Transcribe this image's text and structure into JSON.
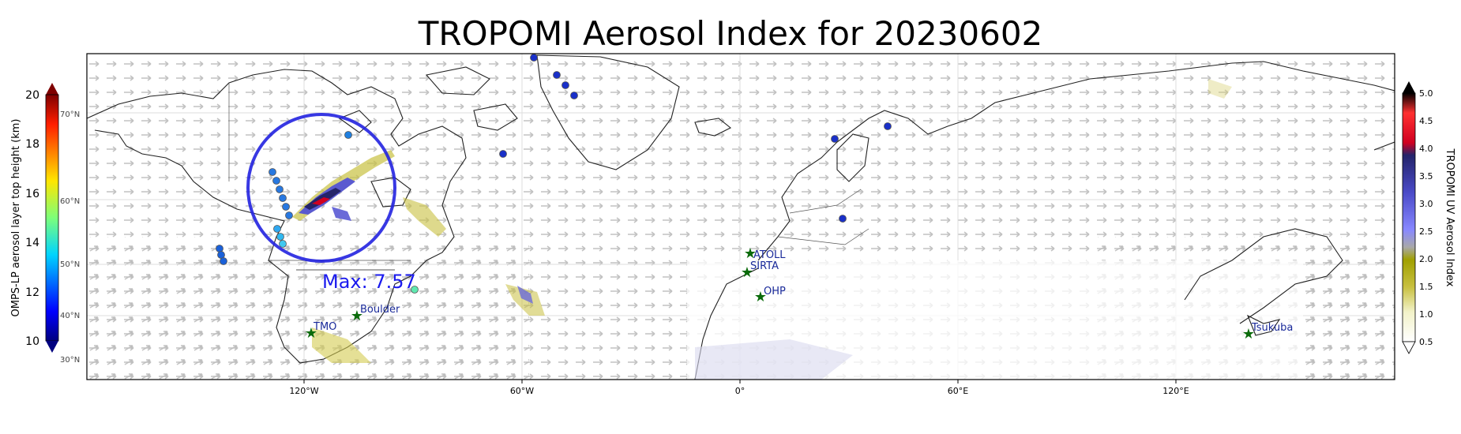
{
  "title": "TROPOMI Aerosol Index for 20230602",
  "map": {
    "lon_ticks": [
      "120°W",
      "60°W",
      "0°",
      "60°E",
      "120°E"
    ],
    "lat_labels": [
      "70°N",
      "60°N",
      "50°N",
      "40°N",
      "30°N"
    ],
    "max_label": "Max: 7.57",
    "stations": [
      {
        "name": "ATOLL",
        "lon": 3.0,
        "lat": 50.6
      },
      {
        "name": "SIRTA",
        "lon": 2.2,
        "lat": 48.7
      },
      {
        "name": "OHP",
        "lon": 5.7,
        "lat": 43.9
      },
      {
        "name": "Boulder",
        "lon": -105.3,
        "lat": 40.0
      },
      {
        "name": "TMO",
        "lon": -117.7,
        "lat": 34.4
      },
      {
        "name": "Tsukuba",
        "lon": 140.1,
        "lat": 36.1
      }
    ]
  },
  "left_colorbar": {
    "label": "OMPS-LP aerosol layer top height (km)",
    "ticks": [
      "20",
      "18",
      "16",
      "14",
      "12",
      "10"
    ],
    "range": [
      10,
      20
    ],
    "colormap": "jet"
  },
  "right_colorbar": {
    "label": "TROPOMI UV Aerosol Index",
    "ticks": [
      "5.0",
      "4.5",
      "4.0",
      "3.5",
      "3.0",
      "2.5",
      "2.0",
      "1.5",
      "1.0",
      "0.5"
    ],
    "range": [
      0.5,
      5.0
    ]
  },
  "colors": {
    "circle": "#2222e0",
    "max_text": "#1a1aee",
    "station_star": "#0a6a0a",
    "station_text": "#1a2a9a"
  }
}
